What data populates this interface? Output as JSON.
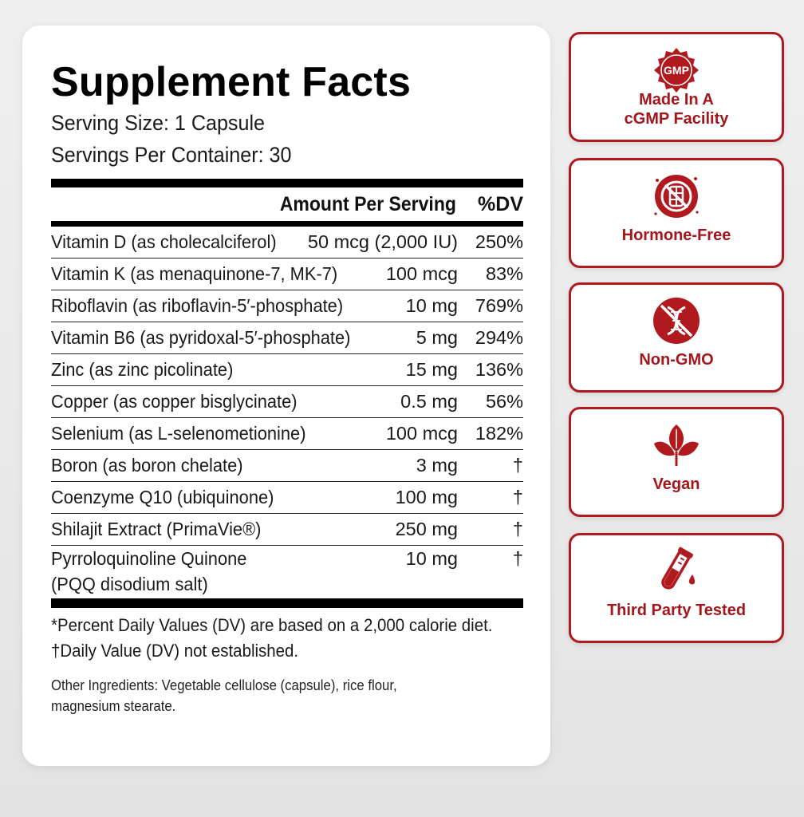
{
  "facts": {
    "title": "Supplement Facts",
    "serving_size": "Serving Size: 1 Capsule",
    "servings_per_container": "Servings Per Container: 30",
    "header_amount": "Amount Per Serving",
    "header_dv": "%DV",
    "rows": [
      {
        "name": "Vitamin D (as cholecalciferol)",
        "amount": "50 mcg (2,000 IU)",
        "dv": "250%"
      },
      {
        "name": "Vitamin K (as menaquinone-7, MK-7)",
        "amount": "100 mcg",
        "dv": "83%"
      },
      {
        "name": "Riboflavin (as riboflavin-5′-phosphate)",
        "amount": "10 mg",
        "dv": "769%"
      },
      {
        "name": "Vitamin B6 (as pyridoxal-5′-phosphate)",
        "amount": "5 mg",
        "dv": "294%"
      },
      {
        "name": "Zinc (as zinc picolinate)",
        "amount": "15 mg",
        "dv": "136%"
      },
      {
        "name": "Copper (as copper bisglycinate)",
        "amount": "0.5 mg",
        "dv": "56%"
      },
      {
        "name": "Selenium (as L-selenometionine)",
        "amount": "100 mcg",
        "dv": "182%"
      },
      {
        "name": "Boron (as boron chelate)",
        "amount": "3 mg",
        "dv": "†"
      },
      {
        "name": "Coenzyme Q10 (ubiquinone)",
        "amount": "100 mg",
        "dv": "†"
      },
      {
        "name": "Shilajit Extract (PrimaVie®)",
        "amount": "250 mg",
        "dv": "†"
      },
      {
        "name": "Pyrroloquinoline Quinone\n(PQQ disodium salt)",
        "amount": "10 mg",
        "dv": "†"
      }
    ],
    "footnote_1": "*Percent Daily Values (DV) are based on a 2,000 calorie diet.",
    "footnote_2": "†Daily Value (DV) not established.",
    "other_ingredients": "Other Ingredients: Vegetable cellulose (capsule), rice flour, magnesium stearate."
  },
  "badges": {
    "gmp": {
      "icon_text": "GMP",
      "label": "Made In A\ncGMP Facility",
      "icon": "gmp-seal-icon"
    },
    "hormone_free": {
      "label": "Hormone-Free",
      "icon": "hormone-free-icon"
    },
    "non_gmo": {
      "label": "Non-GMO",
      "icon": "non-gmo-icon"
    },
    "vegan": {
      "label": "Vegan",
      "icon": "leaf-icon"
    },
    "third_party": {
      "label": "Third Party Tested",
      "icon": "test-tube-icon"
    }
  },
  "colors": {
    "accent": "#b0191e",
    "text": "#111111",
    "panel": "#ffffff",
    "background": "#ececec"
  }
}
